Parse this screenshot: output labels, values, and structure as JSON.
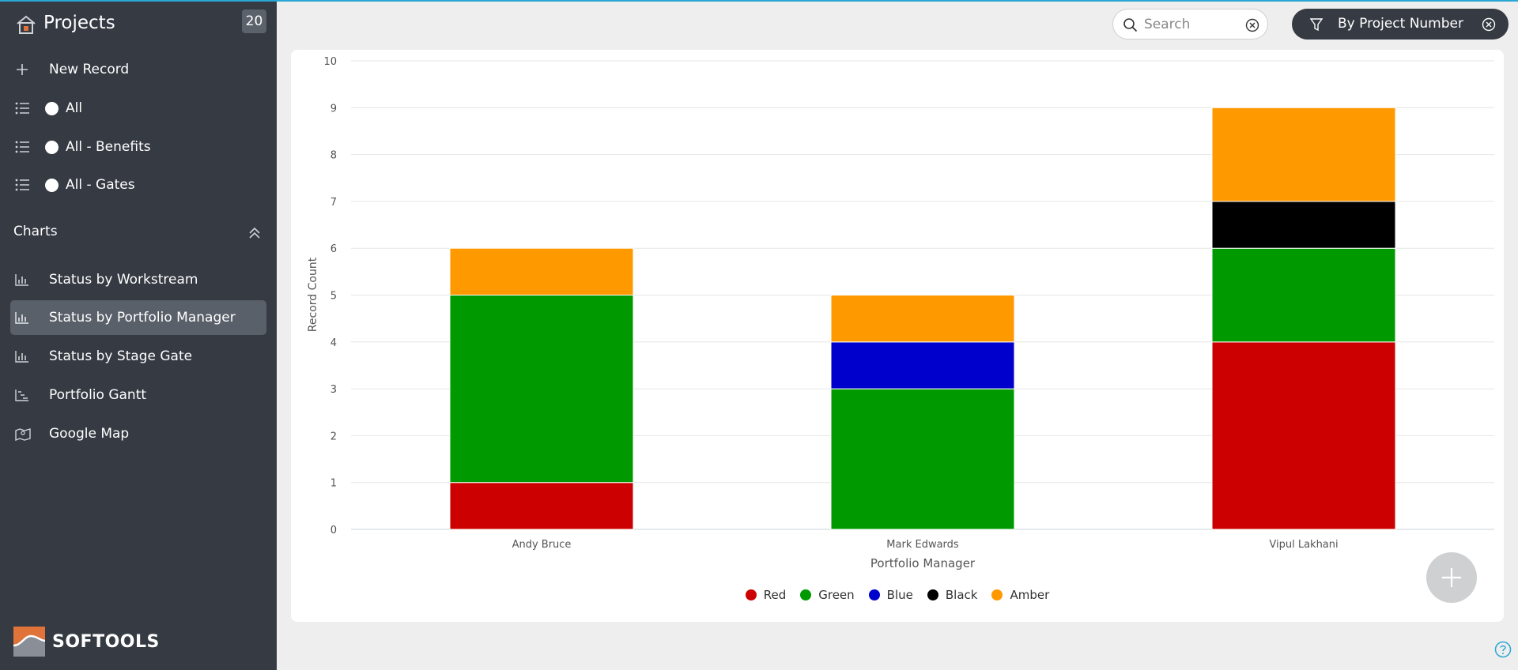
{
  "sidebar": {
    "title": "Projects",
    "count": "20",
    "new_record": "New Record",
    "views": [
      {
        "label": "All"
      },
      {
        "label": "All - Benefits"
      },
      {
        "label": "All - Gates"
      }
    ],
    "charts_section": "Charts",
    "charts": [
      {
        "label": "Status by Workstream",
        "icon": "bar-chart-icon"
      },
      {
        "label": "Status by Portfolio Manager",
        "icon": "bar-chart-icon",
        "active": true
      },
      {
        "label": "Status by Stage Gate",
        "icon": "bar-chart-icon"
      },
      {
        "label": "Portfolio Gantt",
        "icon": "gantt-chart-icon"
      },
      {
        "label": "Google Map",
        "icon": "map-icon"
      }
    ],
    "logo_text": "SOFTOOLS"
  },
  "search": {
    "placeholder": "Search"
  },
  "filter": {
    "label": "By Project Number"
  },
  "colors": {
    "sidebar_bg": "#353a43",
    "red": "#cc0000",
    "green": "#009900",
    "blue": "#0000cc",
    "black": "#000000",
    "amber": "#ff9900",
    "accent": "#2aa7d4"
  },
  "chart_data": {
    "type": "bar",
    "stacked": true,
    "categories": [
      "Andy Bruce",
      "Mark Edwards",
      "Vipul Lakhani"
    ],
    "series": [
      {
        "name": "Red",
        "color": "#cc0000",
        "values": [
          1,
          0,
          4
        ]
      },
      {
        "name": "Green",
        "color": "#009900",
        "values": [
          4,
          3,
          2
        ]
      },
      {
        "name": "Blue",
        "color": "#0000cc",
        "values": [
          0,
          1,
          0
        ]
      },
      {
        "name": "Black",
        "color": "#000000",
        "values": [
          0,
          0,
          1
        ]
      },
      {
        "name": "Amber",
        "color": "#ff9900",
        "values": [
          1,
          1,
          2
        ]
      }
    ],
    "xlabel": "Portfolio Manager",
    "ylabel": "Record Count",
    "ylim": [
      0,
      10
    ],
    "yticks": [
      "0",
      "1",
      "2",
      "3",
      "4",
      "5",
      "6",
      "7",
      "8",
      "9",
      "10"
    ],
    "grid": true,
    "legend": "bottom"
  }
}
